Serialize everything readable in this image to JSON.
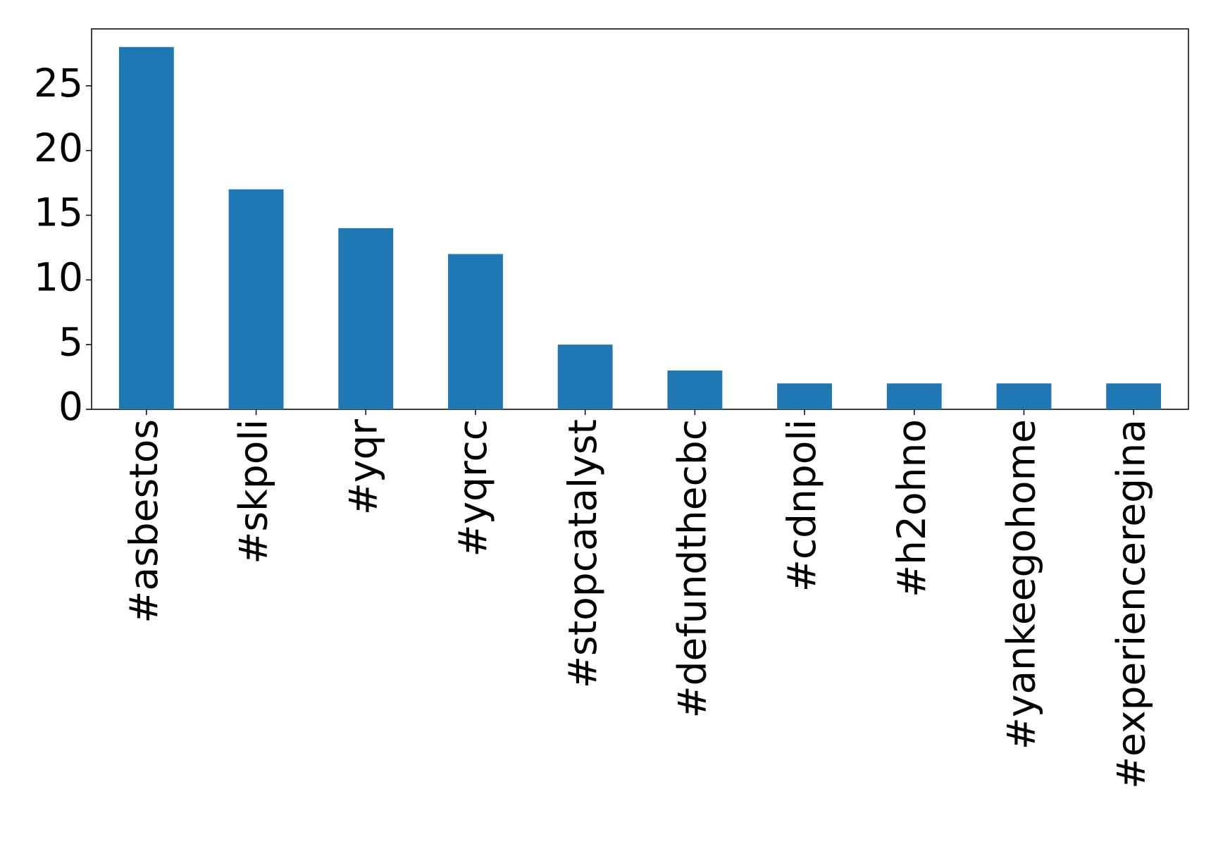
{
  "chart_data": {
    "type": "bar",
    "categories": [
      "#asbestos",
      "#skpoli",
      "#yqr",
      "#yqrcc",
      "#stopcatalyst",
      "#defundthecbc",
      "#cdnpoli",
      "#h2ohno",
      "#yankeegohome",
      "#experienceregina"
    ],
    "values": [
      28,
      17,
      14,
      12,
      5,
      3,
      2,
      2,
      2,
      2
    ],
    "color": "#1f77b4",
    "ylim": [
      0,
      29.4
    ],
    "yticks": [
      0,
      5,
      10,
      15,
      20,
      25
    ],
    "grid": false
  }
}
